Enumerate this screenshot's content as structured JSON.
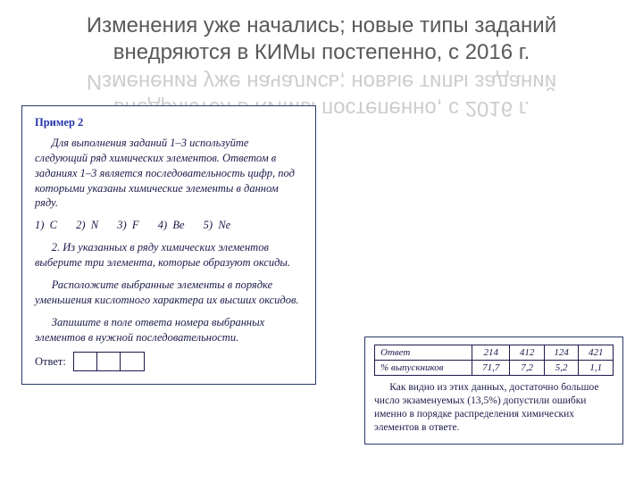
{
  "title": {
    "line1": "Изменения уже начались; новые типы заданий",
    "line2": "внедряются в КИМы постепенно, с 2016 г."
  },
  "example": {
    "label": "Пример 2",
    "intro": "Для выполнения заданий 1–3 используйте следующий ряд химических элементов. Ответом в заданиях 1–3 является последовательность цифр, под которыми указаны химические элементы в данном ряду.",
    "elements": {
      "e1": "1)  C",
      "e2": "2)  N",
      "e3": "3)  F",
      "e4": "4)  Be",
      "e5": "5)  Ne"
    },
    "task1": "2. Из указанных в ряду химических элементов выберите три элемента, которые образуют оксиды.",
    "task2": "Расположите выбранные элементы в порядке уменьшения кислотного характера их высших оксидов.",
    "task3": "Запишите в поле ответа номера выбранных элементов в нужной последовательности.",
    "answer_label": "Ответ:"
  },
  "stats": {
    "header_answer": "Ответ",
    "header_pct": "% выпускников",
    "rows": [
      {
        "ans": "214",
        "pct": "71,7"
      },
      {
        "ans": "412",
        "pct": "7,2"
      },
      {
        "ans": "124",
        "pct": "5,2"
      },
      {
        "ans": "421",
        "pct": "1,1"
      }
    ],
    "note": "Как видно из этих данных, достаточно большое число экзаменуемых (13,5%) допустили ошибки именно в порядке распределения химических элементов в ответе."
  },
  "colors": {
    "text_gray": "#595959",
    "box_border": "#2a3a6a",
    "box_text": "#1a1a4a",
    "label_blue": "#2233aa",
    "bg": "#ffffff"
  }
}
